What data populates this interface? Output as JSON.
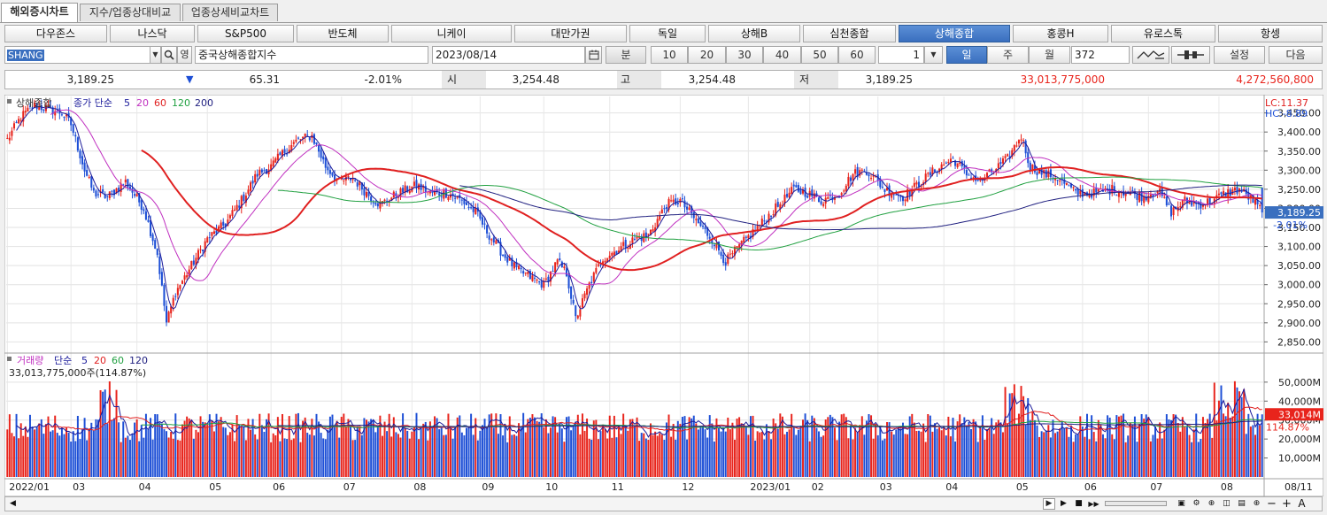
{
  "tabs": [
    {
      "label": "해외증시차트",
      "active": true
    },
    {
      "label": "지수/업종상대비교",
      "active": false
    },
    {
      "label": "업종상세비교차트",
      "active": false
    }
  ],
  "markets": [
    "다우존스",
    "나스닥",
    "S&P500",
    "반도체",
    "니케이",
    "대만가권",
    "독일",
    "상해B",
    "심천종합",
    "상해종합",
    "홍콩H",
    "유로스톡",
    "항셍"
  ],
  "active_market": "상해종합",
  "toolbar": {
    "symbol": "SHANG",
    "symbol_btn": "영",
    "name": "중국상해종합지수",
    "date": "2023/08/14",
    "minute_label": "분",
    "minute_options": [
      "10",
      "20",
      "30",
      "40",
      "50",
      "60"
    ],
    "tick_value": "1",
    "periods": [
      "일",
      "주",
      "월"
    ],
    "active_period": "일",
    "count": "372",
    "settings": "설정",
    "next": "다음"
  },
  "quote": {
    "price": "3,189.25",
    "arrow": "▼",
    "change": "65.31",
    "pct": "-2.01%",
    "open_label": "시",
    "open": "3,254.48",
    "high_label": "고",
    "high": "3,254.48",
    "low_label": "저",
    "low": "3,189.25",
    "volume": "33,013,775,000",
    "amount": "4,272,560,800"
  },
  "price_panel": {
    "name": "상해종합",
    "ma_label": "종가 단순",
    "ma_periods": [
      "5",
      "20",
      "60",
      "120",
      "200"
    ],
    "lc": "LC:11.37",
    "hc": "HC:-8.89",
    "current_tag": "3,189.25",
    "pct_tag": "-2.01%",
    "y_ticks": [
      "3,450.00",
      "3,400.00",
      "3,350.00",
      "3,300.00",
      "3,250.00",
      "3,200.00",
      "3,150.00",
      "3,100.00",
      "3,050.00",
      "3,000.00",
      "2,950.00",
      "2,900.00",
      "2,850.00"
    ]
  },
  "volume_panel": {
    "name": "거래량",
    "ma_label": "단순",
    "ma_periods": [
      "5",
      "20",
      "60",
      "120"
    ],
    "info": "33,013,775,000주(114.87%)",
    "current_tag": "33,014M",
    "pct_tag": "114.87%",
    "y_ticks": [
      "50,000M",
      "40,000M",
      "30,000M",
      "20,000M",
      "10,000M"
    ]
  },
  "x_labels": [
    "2022/01",
    "03",
    "04",
    "05",
    "06",
    "07",
    "08",
    "09",
    "10",
    "11",
    "12",
    "2023/01",
    "02",
    "03",
    "04",
    "05",
    "06",
    "07",
    "08"
  ],
  "x_right_label": "08/11",
  "colors": {
    "up": "#e8241c",
    "down": "#1d4fd6",
    "ma5": "#1a1a9a",
    "ma20": "#c030c0",
    "ma60": "#e02020",
    "ma120": "#20a040",
    "ma200": "#202080",
    "accent": "#3a6fbf"
  },
  "chart_data": {
    "type": "candlestick",
    "title": "상해종합",
    "xlabel": "",
    "ylabel": "",
    "ylim": [
      2830,
      3470
    ],
    "volume_ylim": [
      0,
      56000
    ],
    "price_anchors": [
      [
        0,
        3380
      ],
      [
        6,
        3440
      ],
      [
        12,
        3470
      ],
      [
        18,
        3460
      ],
      [
        24,
        3450
      ],
      [
        28,
        3420
      ],
      [
        34,
        3300
      ],
      [
        38,
        3240
      ],
      [
        44,
        3230
      ],
      [
        52,
        3270
      ],
      [
        60,
        3200
      ],
      [
        66,
        3080
      ],
      [
        70,
        2900
      ],
      [
        74,
        2980
      ],
      [
        80,
        3040
      ],
      [
        88,
        3120
      ],
      [
        96,
        3160
      ],
      [
        104,
        3230
      ],
      [
        110,
        3290
      ],
      [
        116,
        3310
      ],
      [
        122,
        3350
      ],
      [
        128,
        3380
      ],
      [
        134,
        3390
      ],
      [
        140,
        3310
      ],
      [
        146,
        3270
      ],
      [
        152,
        3280
      ],
      [
        158,
        3240
      ],
      [
        164,
        3210
      ],
      [
        172,
        3240
      ],
      [
        180,
        3260
      ],
      [
        186,
        3240
      ],
      [
        194,
        3240
      ],
      [
        200,
        3220
      ],
      [
        206,
        3190
      ],
      [
        212,
        3130
      ],
      [
        218,
        3080
      ],
      [
        224,
        3040
      ],
      [
        230,
        3020
      ],
      [
        236,
        3000
      ],
      [
        242,
        3060
      ],
      [
        246,
        3030
      ],
      [
        250,
        2910
      ],
      [
        256,
        3000
      ],
      [
        262,
        3070
      ],
      [
        268,
        3090
      ],
      [
        276,
        3120
      ],
      [
        282,
        3130
      ],
      [
        290,
        3210
      ],
      [
        296,
        3220
      ],
      [
        304,
        3160
      ],
      [
        310,
        3120
      ],
      [
        316,
        3060
      ],
      [
        322,
        3100
      ],
      [
        330,
        3150
      ],
      [
        338,
        3200
      ],
      [
        346,
        3250
      ],
      [
        352,
        3240
      ],
      [
        358,
        3220
      ],
      [
        366,
        3240
      ],
      [
        372,
        3290
      ],
      [
        378,
        3300
      ],
      [
        386,
        3250
      ],
      [
        394,
        3230
      ],
      [
        400,
        3260
      ],
      [
        408,
        3300
      ],
      [
        416,
        3330
      ],
      [
        422,
        3290
      ],
      [
        428,
        3270
      ],
      [
        434,
        3300
      ],
      [
        440,
        3330
      ],
      [
        446,
        3390
      ],
      [
        450,
        3310
      ],
      [
        456,
        3290
      ],
      [
        462,
        3280
      ],
      [
        470,
        3240
      ],
      [
        478,
        3240
      ],
      [
        486,
        3250
      ],
      [
        494,
        3240
      ],
      [
        500,
        3230
      ],
      [
        506,
        3250
      ],
      [
        512,
        3190
      ],
      [
        518,
        3220
      ],
      [
        524,
        3210
      ],
      [
        530,
        3220
      ],
      [
        536,
        3240
      ],
      [
        542,
        3250
      ],
      [
        548,
        3220
      ],
      [
        552,
        3192
      ]
    ],
    "volume_mean": 26000,
    "last": {
      "close": 3189.25,
      "volume": 33014
    }
  }
}
